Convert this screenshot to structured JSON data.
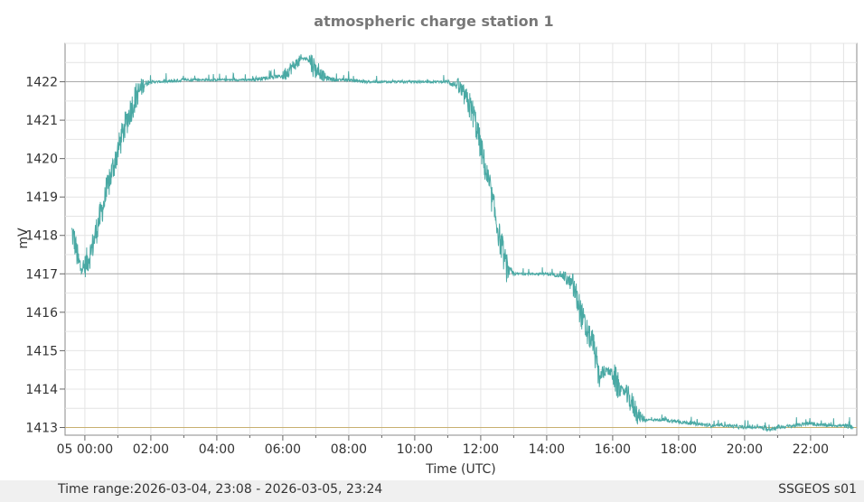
{
  "chart_data": {
    "type": "line",
    "title": "atmospheric charge station 1",
    "xlabel": "Time (UTC)",
    "ylabel": "mV",
    "x_ticks": [
      "05 00:00",
      "02:00",
      "04:00",
      "06:00",
      "08:00",
      "10:00",
      "12:00",
      "14:00",
      "16:00",
      "18:00",
      "20:00",
      "22:00"
    ],
    "x_tick_hours": [
      0,
      2,
      4,
      6,
      8,
      10,
      12,
      14,
      16,
      18,
      20,
      22
    ],
    "xlim": [
      -0.6,
      23.4
    ],
    "ylim": [
      1412.8,
      1423.0
    ],
    "y_ticks": [
      1413,
      1414,
      1415,
      1416,
      1417,
      1418,
      1419,
      1420,
      1421,
      1422
    ],
    "reference_lines": [
      {
        "y": 1422,
        "color": "#aaaaaa"
      },
      {
        "y": 1417,
        "color": "#aaaaaa"
      },
      {
        "y": 1413,
        "color": "#c8b070"
      }
    ],
    "grid": true,
    "series": [
      {
        "color": "#4aa9a4",
        "x": [
          -0.4,
          -0.3,
          -0.2,
          -0.1,
          0.0,
          0.2,
          0.4,
          0.6,
          0.8,
          1.0,
          1.2,
          1.4,
          1.6,
          1.8,
          2.0,
          2.2,
          2.5,
          3.0,
          3.5,
          4.0,
          4.5,
          5.0,
          5.5,
          6.0,
          6.3,
          6.6,
          6.8,
          7.0,
          7.3,
          7.6,
          8.0,
          8.5,
          9.0,
          9.5,
          10.0,
          10.5,
          11.0,
          11.3,
          11.6,
          11.8,
          12.0,
          12.2,
          12.4,
          12.6,
          12.8,
          13.0,
          13.5,
          14.0,
          14.5,
          14.8,
          15.0,
          15.2,
          15.4,
          15.6,
          15.8,
          16.0,
          16.2,
          16.4,
          16.6,
          16.8,
          17.0,
          17.2,
          17.5,
          18.0,
          18.5,
          19.0,
          19.5,
          20.0,
          20.5,
          20.7,
          21.0,
          21.5,
          22.0,
          22.5,
          23.0,
          23.3
        ],
        "y": [
          1418.1,
          1417.8,
          1417.3,
          1417.1,
          1417.2,
          1417.6,
          1418.3,
          1418.9,
          1419.6,
          1420.2,
          1420.8,
          1421.3,
          1421.7,
          1421.95,
          1422.0,
          1422.0,
          1422.0,
          1422.05,
          1422.05,
          1422.05,
          1422.05,
          1422.05,
          1422.1,
          1422.15,
          1422.4,
          1422.6,
          1422.6,
          1422.3,
          1422.1,
          1422.05,
          1422.05,
          1422.0,
          1422.0,
          1422.0,
          1422.0,
          1422.0,
          1422.0,
          1421.9,
          1421.5,
          1421.1,
          1420.3,
          1419.5,
          1418.7,
          1417.8,
          1417.1,
          1417.0,
          1417.0,
          1417.0,
          1416.95,
          1416.7,
          1416.1,
          1415.5,
          1415.2,
          1414.3,
          1414.5,
          1414.4,
          1414.0,
          1413.9,
          1413.6,
          1413.3,
          1413.2,
          1413.2,
          1413.2,
          1413.15,
          1413.1,
          1413.05,
          1413.05,
          1413.0,
          1413.0,
          1412.95,
          1413.0,
          1413.05,
          1413.1,
          1413.05,
          1413.05,
          1413.0
        ]
      }
    ]
  },
  "footer": {
    "time_range": "Time range:2026-03-04, 23:08 - 2026-03-05, 23:24",
    "station": "SSGEOS s01"
  }
}
